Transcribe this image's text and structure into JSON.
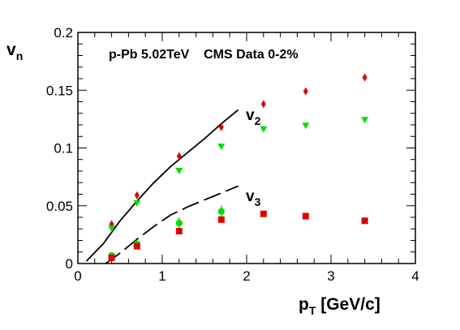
{
  "chart_data": {
    "type": "scatter",
    "title": "p-Pb 5.02TeV    CMS Data 0-2%",
    "xlabel": {
      "main": "p",
      "sub": "T",
      "rest": " [GeV/c]"
    },
    "ylabel": {
      "main": "v",
      "sub": "n"
    },
    "xlim": [
      0,
      4
    ],
    "ylim": [
      0,
      0.2
    ],
    "xticks": [
      0,
      1,
      2,
      3,
      4
    ],
    "xtick_labels": [
      "0",
      "1",
      "2",
      "3",
      "4"
    ],
    "yticks": [
      0,
      0.05,
      0.1,
      0.15,
      0.2
    ],
    "ytick_labels": [
      "0",
      "0.05",
      "0.1",
      "0.15",
      "0.2"
    ],
    "grid": false,
    "series": [
      {
        "marker": "diamond",
        "color": "#e00000",
        "x": [
          0.4,
          0.7,
          1.2,
          1.7,
          2.2,
          2.7,
          3.4
        ],
        "y": [
          0.034,
          0.059,
          0.093,
          0.118,
          0.138,
          0.149,
          0.161
        ]
      },
      {
        "marker": "triangle-down",
        "color": "#00e000",
        "x": [
          0.4,
          0.7,
          1.2,
          1.7,
          2.2,
          2.7,
          3.4
        ],
        "y": [
          0.03,
          0.052,
          0.08,
          0.101,
          0.116,
          0.119,
          0.124
        ]
      },
      {
        "marker": "circle",
        "color": "#00e000",
        "x": [
          0.4,
          0.7,
          1.2,
          1.7
        ],
        "y": [
          0.007,
          0.017,
          0.035,
          0.045
        ],
        "err": [
          0.002,
          0.002,
          0.005,
          0.005
        ]
      },
      {
        "marker": "square",
        "color": "#e00000",
        "x": [
          0.4,
          0.7,
          1.2,
          1.7,
          2.2,
          2.7,
          3.4
        ],
        "y": [
          0.005,
          0.015,
          0.028,
          0.038,
          0.043,
          0.041,
          0.037
        ]
      }
    ],
    "curves": [
      {
        "label_main": "v",
        "label_sub": "2",
        "style": "solid",
        "x": [
          0.1,
          0.3,
          0.5,
          0.7,
          0.9,
          1.1,
          1.3,
          1.5,
          1.7,
          1.9
        ],
        "y": [
          0.002,
          0.017,
          0.037,
          0.054,
          0.07,
          0.084,
          0.096,
          0.108,
          0.121,
          0.133
        ]
      },
      {
        "label_main": "v",
        "label_sub": "3",
        "style": "dashed",
        "x": [
          0.33,
          0.5,
          0.7,
          0.9,
          1.1,
          1.3,
          1.5,
          1.7,
          1.9
        ],
        "y": [
          0.0,
          0.009,
          0.021,
          0.032,
          0.042,
          0.049,
          0.055,
          0.061,
          0.067
        ]
      }
    ]
  }
}
